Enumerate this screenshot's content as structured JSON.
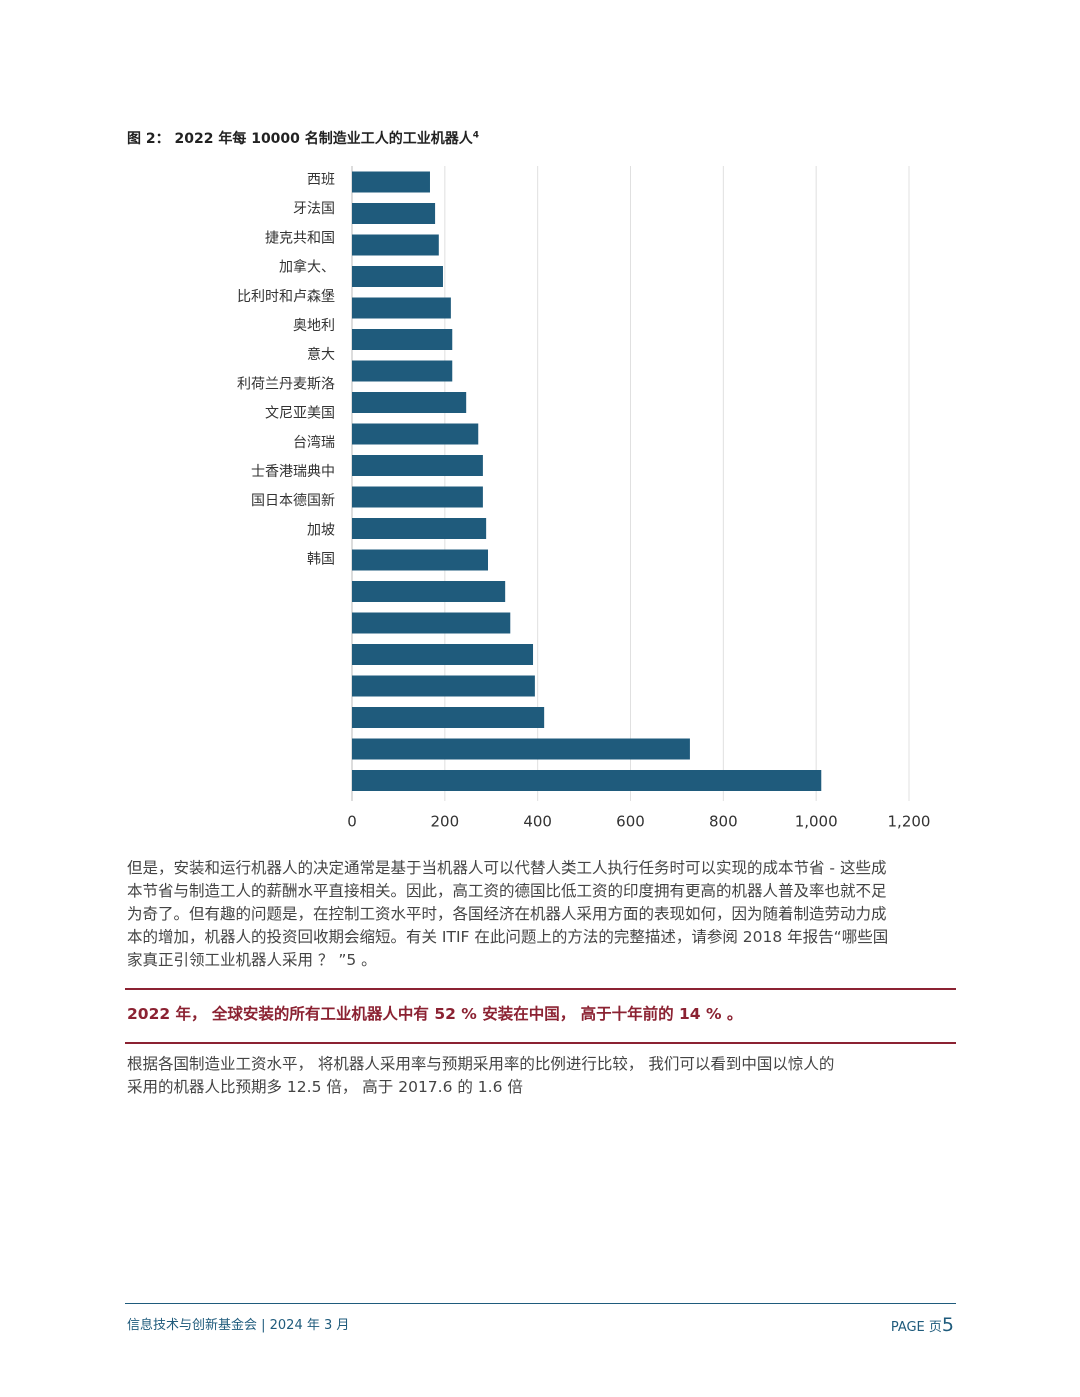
{
  "figure_title": "图 2： 2022 年每 10000 名制造业工人的工业机器人",
  "figure_note": "4",
  "chart_data": {
    "type": "barh",
    "categories": [
      "西班",
      "牙法国",
      "捷克共和国",
      "加拿大、",
      "比利时和卢森堡",
      "奥地利",
      "意大",
      "利荷兰丹麦斯洛",
      "文尼亚美国",
      "台湾瑞",
      "士香港瑞典中",
      "国日本德国新",
      "加坡",
      "韩国",
      null,
      null,
      null,
      null,
      null,
      null
    ],
    "values": [
      168,
      179,
      187,
      196,
      213,
      216,
      216,
      246,
      272,
      282,
      282,
      289,
      293,
      330,
      341,
      390,
      394,
      414,
      728,
      1011
    ],
    "color": "#1f5b7c",
    "xlim": [
      0,
      1200
    ],
    "xticks": [
      0,
      200,
      400,
      600,
      800,
      {
        "value": 1000,
        "label": "1,000"
      },
      {
        "value": 1200,
        "label": "1,200"
      }
    ],
    "grid": true
  },
  "paragraph1": [
    "但是，安装和运行机器人的决定通常是基于当机器人可以代替人类工人执行任务时可以实现的成本节省 - 这些成",
    "本节省与制造工人的薪酬水平直接相关。因此，高工资的德国比低工资的印度拥有更高的机器人普及率也就不足",
    "为奇了。但有趣的问题是，在控制工资水平时，各国经济在机器人采用方面的表现如何，因为随着制造劳动力成",
    "本的增加，机器人的投资回收期会缩短。有关 ITIF 在此问题上的方法的完整描述，请参阅 2018 年报告“哪些国",
    "家真正引领工业机器人采用 ？ ”5 。"
  ],
  "callout": "2022 年， 全球安装的所有工业机器人中有 52 % 安装在中国， 高于十年前的 14 % 。",
  "paragraph2": [
    "根据各国制造业工资水平， 将机器人采用率与预期采用率的比例进行比较， 我们可以看到中国以惊人的",
    "采用的机器人比预期多 12.5 倍， 高于 2017.6 的 1.6 倍"
  ],
  "footer": {
    "left": "信息技术与创新基金会 | 2024 年 3 月",
    "page_label": "PAGE 页",
    "page_number": "5"
  }
}
